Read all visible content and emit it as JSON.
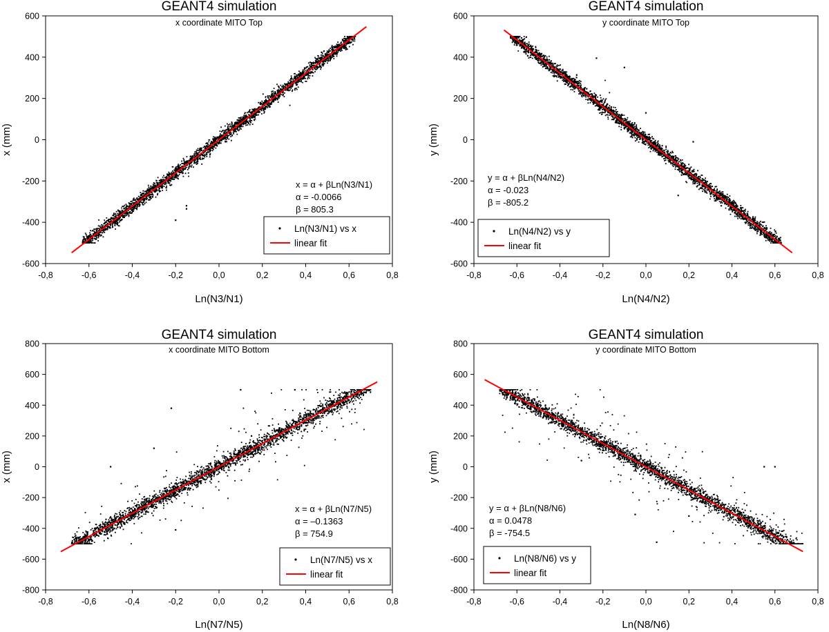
{
  "chart_data": [
    {
      "type": "scatter",
      "title": "GEANT4 simulation",
      "subtitle": "x coordinate MITO Top",
      "xlabel": "Ln(N3/N1)",
      "ylabel": "x  (mm)",
      "xlim": [
        -0.8,
        0.8
      ],
      "ylim": [
        -600,
        600
      ],
      "xticks": [
        -0.8,
        -0.6,
        -0.4,
        -0.2,
        0.0,
        0.2,
        0.4,
        0.6,
        0.8
      ],
      "xtick_labels": [
        "-0,8",
        "-0,6",
        "-0,4",
        "-0,2",
        "0,0",
        "0,2",
        "0,4",
        "0,6",
        "0,8"
      ],
      "yticks": [
        -600,
        -400,
        -200,
        0,
        200,
        400,
        600
      ],
      "ytick_labels": [
        "-600",
        "-400",
        "-200",
        "0",
        "200",
        "400",
        "600"
      ],
      "series": [
        {
          "name": "Ln(N3/N1) vs x",
          "kind": "points",
          "trend": {
            "slope": 805.3,
            "intercept": 0,
            "x_range": [
              -0.63,
              0.63
            ],
            "band_sd": 16,
            "n": 3200,
            "outlier_fraction": 0.002,
            "clip": [
              -500,
              500
            ]
          },
          "points": [
            [
              -0.15,
              -320
            ],
            [
              -0.15,
              -335
            ],
            [
              -0.2,
              -390
            ],
            [
              0.6,
              490
            ],
            [
              -0.55,
              -450
            ]
          ]
        },
        {
          "name": "linear fit",
          "kind": "line",
          "color": "#ff0000",
          "x": [
            -0.68,
            0.68
          ],
          "y": [
            -547.6,
            547.6
          ]
        }
      ],
      "annotation": [
        "x = α + βLn(N3/N1)",
        "α = -0.0066",
        "β = 805.3"
      ],
      "legend": [
        "Ln(N3/N1) vs x",
        "linear fit"
      ],
      "legend_position": "lower-right"
    },
    {
      "type": "scatter",
      "title": "GEANT4 simulation",
      "subtitle": "y coordinate MITO Top",
      "xlabel": "Ln(N4/N2)",
      "ylabel": "y  (mm)",
      "xlim": [
        -0.8,
        0.8
      ],
      "ylim": [
        -600,
        600
      ],
      "xticks": [
        -0.8,
        -0.6,
        -0.4,
        -0.2,
        0.0,
        0.2,
        0.4,
        0.6,
        0.8
      ],
      "xtick_labels": [
        "-0,8",
        "-0,6",
        "-0,4",
        "-0,2",
        "0,0",
        "0,2",
        "0,4",
        "0,6",
        "0,8"
      ],
      "yticks": [
        -600,
        -400,
        -200,
        0,
        200,
        400,
        600
      ],
      "ytick_labels": [
        "-600",
        "-400",
        "-200",
        "0",
        "200",
        "400",
        "600"
      ],
      "series": [
        {
          "name": "Ln(N4/N2) vs y",
          "kind": "points",
          "trend": {
            "slope": -805.2,
            "intercept": 0,
            "x_range": [
              -0.63,
              0.63
            ],
            "band_sd": 16,
            "n": 3200,
            "outlier_fraction": 0.002,
            "clip": [
              -500,
              500
            ]
          },
          "points": [
            [
              -0.23,
              395
            ],
            [
              -0.1,
              350
            ],
            [
              0.0,
              130
            ],
            [
              0.22,
              -10
            ],
            [
              0.15,
              -270
            ]
          ]
        },
        {
          "name": "linear fit",
          "kind": "line",
          "color": "#ff0000",
          "x": [
            -0.66,
            0.68
          ],
          "y": [
            531.4,
            -547.5
          ]
        }
      ],
      "annotation": [
        "y = α + βLn(N4/N2)",
        "α = -0.023",
        "β = -805.2"
      ],
      "legend": [
        "Ln(N4/N2) vs y",
        "linear fit"
      ],
      "legend_position": "lower-left"
    },
    {
      "type": "scatter",
      "title": "GEANT4 simulation",
      "subtitle": "x coordinate MITO Bottom",
      "xlabel": "Ln(N7/N5)",
      "ylabel": "x  (mm)",
      "xlim": [
        -0.8,
        0.8
      ],
      "ylim": [
        -800,
        800
      ],
      "xticks": [
        -0.8,
        -0.6,
        -0.4,
        -0.2,
        0.0,
        0.2,
        0.4,
        0.6,
        0.8
      ],
      "xtick_labels": [
        "-0,8",
        "-0,6",
        "-0,4",
        "-0,2",
        "0,0",
        "0,2",
        "0,4",
        "0,6",
        "0,8"
      ],
      "yticks": [
        -800,
        -600,
        -400,
        -200,
        0,
        200,
        400,
        600,
        800
      ],
      "ytick_labels": [
        "-800",
        "-600",
        "-400",
        "-200",
        "0",
        "200",
        "400",
        "600",
        "800"
      ],
      "series": [
        {
          "name": "Ln(N7/N5) vs x",
          "kind": "points",
          "trend": {
            "slope": 754.9,
            "intercept": -0.1363,
            "x_range": [
              -0.68,
              0.7
            ],
            "band_sd": 25,
            "n": 3000,
            "outlier_fraction": 0.07,
            "clip": [
              -500,
              500
            ]
          },
          "points": [
            [
              -0.5,
              0
            ],
            [
              -0.22,
              380
            ],
            [
              -0.3,
              120
            ],
            [
              0.1,
              500
            ],
            [
              0.35,
              500
            ],
            [
              -0.2,
              -410
            ],
            [
              0.15,
              200
            ]
          ]
        },
        {
          "name": "linear fit",
          "kind": "line",
          "color": "#ff0000",
          "x": [
            -0.73,
            0.73
          ],
          "y": [
            -551.2,
            551.0
          ]
        }
      ],
      "annotation": [
        "x = α + βLn(N7/N5)",
        "α = –0.1363",
        "β = 754.9"
      ],
      "legend": [
        "Ln(N7/N5) vs x",
        "linear fit"
      ],
      "legend_position": "lower-right"
    },
    {
      "type": "scatter",
      "title": "GEANT4 simulation",
      "subtitle": "y coordinate MITO Bottom",
      "xlabel": "Ln(N8/N6)",
      "ylabel": "y  (mm)",
      "xlim": [
        -0.8,
        0.8
      ],
      "ylim": [
        -800,
        800
      ],
      "xticks": [
        -0.8,
        -0.6,
        -0.4,
        -0.2,
        0.0,
        0.2,
        0.4,
        0.6,
        0.8
      ],
      "xtick_labels": [
        "-0,8",
        "-0,6",
        "-0,4",
        "-0,2",
        "0,0",
        "0,2",
        "0,4",
        "0,6",
        "0,8"
      ],
      "yticks": [
        -800,
        -600,
        -400,
        -200,
        0,
        200,
        400,
        600,
        800
      ],
      "ytick_labels": [
        "-800",
        "-600",
        "-400",
        "-200",
        "0",
        "200",
        "400",
        "600",
        "800"
      ],
      "series": [
        {
          "name": "Ln(N8/N6) vs y",
          "kind": "points",
          "trend": {
            "slope": -754.5,
            "intercept": 0.0478,
            "x_range": [
              -0.68,
              0.73
            ],
            "band_sd": 25,
            "n": 3000,
            "outlier_fraction": 0.07,
            "clip": [
              -500,
              500
            ]
          },
          "points": [
            [
              0.55,
              0
            ],
            [
              0.6,
              0
            ],
            [
              -0.05,
              -310
            ],
            [
              0.05,
              -490
            ],
            [
              0.2,
              -320
            ],
            [
              -0.3,
              40
            ]
          ]
        },
        {
          "name": "linear fit",
          "kind": "line",
          "color": "#ff0000",
          "x": [
            -0.75,
            0.73
          ],
          "y": [
            565.9,
            -550.8
          ]
        }
      ],
      "annotation": [
        "y = α + βLn(N8/N6)",
        "α = 0.0478",
        "β = -754.5"
      ],
      "legend": [
        "Ln(N8/N6) vs y",
        "linear fit"
      ],
      "legend_position": "lower-left"
    }
  ]
}
